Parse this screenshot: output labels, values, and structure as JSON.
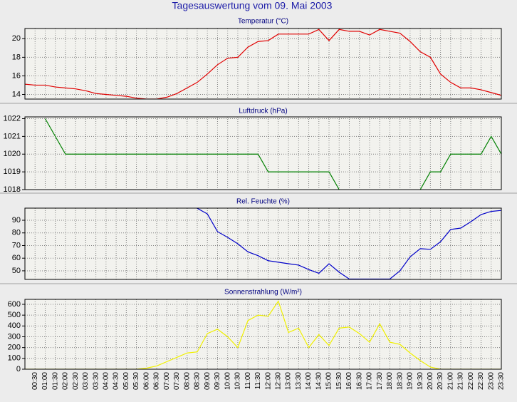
{
  "title": "Tagesauswertung vom 09. Mai 2003",
  "categories": [
    null,
    "00:30",
    "01:00",
    "01:30",
    "02:00",
    "02:30",
    "03:00",
    "03:30",
    "04:00",
    "04:30",
    "05:00",
    "05:30",
    "06:00",
    "06:30",
    "07:00",
    "07:30",
    "08:00",
    "08:30",
    "09:00",
    "09:30",
    "10:00",
    "10:30",
    "11:00",
    "11:30",
    "12:00",
    "12:30",
    "13:00",
    "13:30",
    "14:00",
    "14:30",
    "15:00",
    "15:30",
    "16:00",
    "16:30",
    "17:00",
    "17:30",
    "18:00",
    "18:30",
    "19:00",
    "19:30",
    "20:00",
    "20:30",
    "21:00",
    "21:30",
    "22:00",
    "22:30",
    "23:00",
    "23:30"
  ],
  "chart_data": [
    {
      "type": "line",
      "title": "Temperatur (°C)",
      "color": "#e00000",
      "values": [
        15.1,
        15.0,
        15.0,
        14.8,
        14.7,
        14.6,
        14.4,
        14.1,
        14.0,
        13.9,
        13.8,
        13.6,
        13.5,
        13.5,
        13.7,
        14.1,
        14.7,
        15.3,
        16.2,
        17.2,
        17.9,
        18.0,
        19.1,
        19.7,
        19.8,
        20.5,
        20.5,
        20.5,
        20.5,
        21.0,
        19.8,
        21.0,
        20.8,
        20.8,
        20.4,
        21.0,
        20.8,
        20.6,
        19.7,
        18.6,
        18.0,
        16.2,
        15.3,
        14.7,
        14.7,
        14.5,
        14.2,
        13.9
      ],
      "ylim": [
        13.5,
        21.1
      ],
      "yticks": [
        14,
        16,
        18,
        20
      ],
      "grid": true
    },
    {
      "type": "line",
      "title": "Luftdruck (hPa)",
      "color": "#008000",
      "values": [
        null,
        null,
        1022,
        1021,
        1020,
        1020,
        1020,
        1020,
        1020,
        1020,
        1020,
        1020,
        1020,
        1020,
        1020,
        1020,
        1020,
        1020,
        1020,
        1020,
        1020,
        1020,
        1020,
        1020,
        1019,
        1019,
        1019,
        1019,
        1019,
        1019,
        1019,
        1018,
        null,
        null,
        null,
        null,
        null,
        null,
        null,
        1018,
        1019,
        1019,
        1020,
        1020,
        1020,
        1020,
        1021,
        1020
      ],
      "ylim": [
        1018,
        1022.1
      ],
      "yticks": [
        1018,
        1019,
        1020,
        1021,
        1022
      ],
      "grid": true
    },
    {
      "type": "line",
      "title": "Rel. Feuchte (%)",
      "color": "#0000c8",
      "values": [
        null,
        null,
        null,
        null,
        null,
        null,
        null,
        null,
        null,
        null,
        null,
        null,
        null,
        null,
        null,
        null,
        null,
        99.5,
        95,
        81,
        76.5,
        71.4,
        65,
        62,
        58,
        56.8,
        55.6,
        54.5,
        51,
        48,
        55.6,
        48.9,
        43.5,
        43.5,
        43.5,
        43.5,
        43.5,
        50,
        61,
        67.5,
        67,
        73,
        82.7,
        83.8,
        88.9,
        94.5,
        97,
        97.8
      ],
      "ylim": [
        43.2,
        99.6
      ],
      "yticks": [
        50,
        60,
        70,
        80,
        90
      ],
      "grid": true
    },
    {
      "type": "line",
      "title": "Sonnenstrahlung (W/m²)",
      "color": "#f0f000",
      "values": [
        0,
        0,
        0,
        0,
        0,
        0,
        0,
        0,
        0,
        0,
        0,
        0,
        10,
        30,
        70,
        110,
        150,
        160,
        330,
        370,
        300,
        200,
        450,
        500,
        490,
        630,
        340,
        380,
        200,
        320,
        220,
        380,
        390,
        330,
        250,
        420,
        250,
        230,
        150,
        80,
        20,
        0,
        0,
        0,
        0,
        0,
        0,
        0
      ],
      "ylim": [
        0,
        646
      ],
      "yticks": [
        0,
        100,
        200,
        300,
        400,
        500,
        600
      ],
      "grid": true
    }
  ]
}
